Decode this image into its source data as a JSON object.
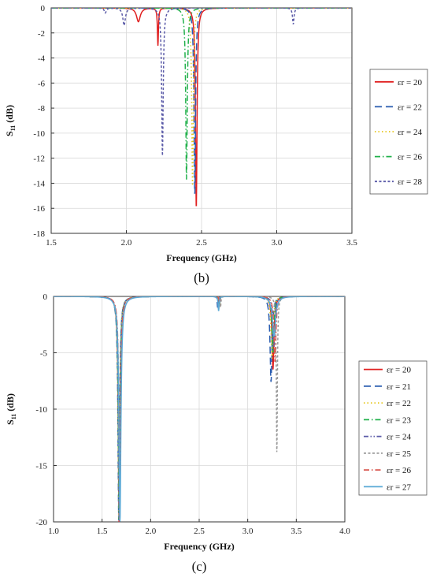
{
  "chart_data": [
    {
      "type": "line",
      "panel_label": "(b)",
      "xlabel": "Frequency (GHz)",
      "ylabel_main": "S",
      "ylabel_sub": "11",
      "ylabel_unit": " (dB)",
      "xlim": [
        1.5,
        3.5
      ],
      "ylim": [
        -18,
        0
      ],
      "xticks": [
        "1.5",
        "2.0",
        "2.5",
        "3.0",
        "3.5"
      ],
      "yticks": [
        "0",
        "-2",
        "-4",
        "-6",
        "-8",
        "-10",
        "-12",
        "-14",
        "-16",
        "-18"
      ],
      "grid": true,
      "legend_position": "right",
      "series": [
        {
          "name": "εr = 20",
          "color": "#e02020",
          "dash": "solid",
          "dips": [
            [
              2.08,
              -1.1,
              0.015
            ],
            [
              2.21,
              -3.0,
              0.004
            ],
            [
              2.465,
              -16.0,
              0.006
            ]
          ]
        },
        {
          "name": "εr = 22",
          "color": "#2a5db0",
          "dash": "long-dash",
          "dips": [
            [
              2.455,
              -15.0,
              0.006
            ]
          ]
        },
        {
          "name": "εr = 24",
          "color": "#e6c619",
          "dash": "dot",
          "dips": [
            [
              2.44,
              -14.2,
              0.006
            ]
          ]
        },
        {
          "name": "εr = 26",
          "color": "#22b14c",
          "dash": "dash-dot",
          "dips": [
            [
              2.4,
              -13.7,
              0.006
            ]
          ]
        },
        {
          "name": "εr = 28",
          "color": "#5b5ba8",
          "dash": "short-dash",
          "dips": [
            [
              1.86,
              -0.4,
              0.008
            ],
            [
              1.985,
              -1.4,
              0.01
            ],
            [
              2.24,
              -11.8,
              0.006
            ],
            [
              3.11,
              -1.3,
              0.006
            ]
          ]
        }
      ]
    },
    {
      "type": "line",
      "panel_label": "(c)",
      "xlabel": "Frequency (GHz)",
      "ylabel_main": "S",
      "ylabel_sub": "11",
      "ylabel_unit": " (dB)",
      "xlim": [
        1.0,
        4.0
      ],
      "ylim": [
        -20,
        0
      ],
      "xticks": [
        "1.0",
        "1.5",
        "2.0",
        "2.5",
        "3.0",
        "3.5",
        "4.0"
      ],
      "yticks": [
        "0",
        "-5",
        "-10",
        "-15",
        "-20"
      ],
      "grid": true,
      "legend_position": "right",
      "series": [
        {
          "name": "εr = 20",
          "color": "#e02020",
          "dash": "solid",
          "dips": [
            [
              1.675,
              -20.0,
              0.01
            ],
            [
              2.7,
              -1.1,
              0.005
            ],
            [
              3.26,
              -6.5,
              0.012
            ]
          ]
        },
        {
          "name": "εr = 21",
          "color": "#2a5db0",
          "dash": "long-dash",
          "dips": [
            [
              1.672,
              -20.0,
              0.01
            ],
            [
              2.69,
              -1.0,
              0.005
            ],
            [
              3.24,
              -7.6,
              0.012
            ]
          ]
        },
        {
          "name": "εr = 22",
          "color": "#e6c619",
          "dash": "dot",
          "dips": [
            [
              1.674,
              -20.0,
              0.01
            ],
            [
              2.7,
              -0.9,
              0.005
            ],
            [
              3.25,
              -5.5,
              0.012
            ]
          ]
        },
        {
          "name": "εr = 23",
          "color": "#22b14c",
          "dash": "dash-dot",
          "dips": [
            [
              1.676,
              -20.0,
              0.01
            ],
            [
              2.71,
              -0.8,
              0.005
            ],
            [
              3.26,
              -5.0,
              0.012
            ]
          ]
        },
        {
          "name": "εr = 24",
          "color": "#5b5ba8",
          "dash": "dash-dot-dot",
          "dips": [
            [
              1.678,
              -20.0,
              0.01
            ],
            [
              2.7,
              -1.2,
              0.005
            ],
            [
              3.27,
              -4.5,
              0.012
            ]
          ]
        },
        {
          "name": "εr = 25",
          "color": "#9a9a9a",
          "dash": "short-dash",
          "dips": [
            [
              1.68,
              -20.0,
              0.01
            ],
            [
              2.72,
              -1.0,
              0.005
            ],
            [
              3.3,
              -14.0,
              0.006
            ]
          ]
        },
        {
          "name": "εr = 26",
          "color": "#d9564e",
          "dash": "dash-dot",
          "dips": [
            [
              1.682,
              -20.0,
              0.01
            ],
            [
              2.71,
              -0.7,
              0.005
            ],
            [
              3.28,
              -5.8,
              0.012
            ]
          ]
        },
        {
          "name": "εr = 27",
          "color": "#5aa9d6",
          "dash": "solid",
          "dips": [
            [
              1.684,
              -20.0,
              0.012
            ],
            [
              2.7,
              -1.3,
              0.006
            ],
            [
              3.27,
              -3.5,
              0.02
            ]
          ]
        }
      ]
    }
  ]
}
